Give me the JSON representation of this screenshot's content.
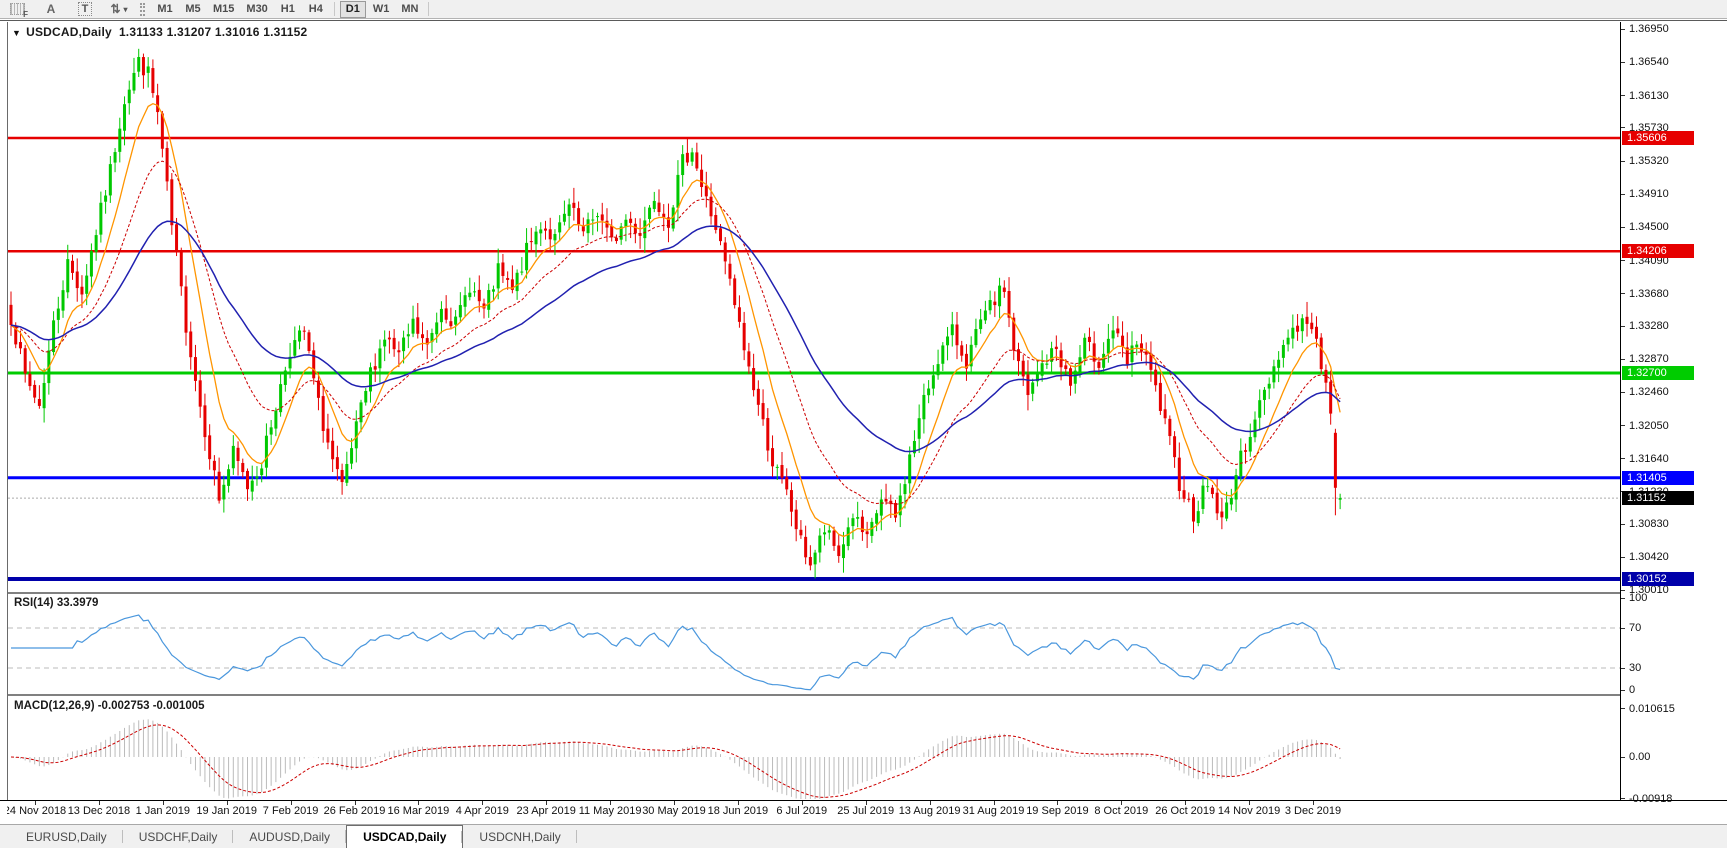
{
  "toolbar": {
    "tools": [
      {
        "name": "fibo-grid-tool",
        "glyph": "grid",
        "sub": "F"
      },
      {
        "name": "text-label-tool",
        "glyph": "A"
      },
      {
        "name": "text-tool",
        "glyph": "T",
        "boxed": true
      },
      {
        "name": "arrows-tool",
        "glyph": "⇅",
        "caret": "▾"
      }
    ],
    "timeframes": [
      "M1",
      "M5",
      "M15",
      "M30",
      "H1",
      "H4",
      "D1",
      "W1",
      "MN"
    ],
    "active_timeframe": "D1"
  },
  "chart": {
    "dropdown_glyph": "▼",
    "title": "USDCAD,Daily",
    "ohlc_text": "1.31133 1.31207 1.31016 1.31152"
  },
  "chart_data": {
    "type": "candlestick",
    "symbol": "USDCAD",
    "timeframe": "Daily",
    "current_bar": {
      "open": 1.31133,
      "high": 1.31207,
      "low": 1.31016,
      "close": 1.31152
    },
    "bars_total": 282,
    "price_axis": {
      "ticks": [
        "1.36950",
        "1.36540",
        "1.36130",
        "1.35730",
        "1.35320",
        "1.34910",
        "1.34500",
        "1.34090",
        "1.33680",
        "1.33280",
        "1.32870",
        "1.32460",
        "1.32050",
        "1.31640",
        "1.31230",
        "1.30830",
        "1.30420",
        "1.30010"
      ],
      "badges": [
        {
          "text": "1.35606",
          "bg": "#e60000"
        },
        {
          "text": "1.34206",
          "bg": "#e60000"
        },
        {
          "text": "1.32700",
          "bg": "#00cc00"
        },
        {
          "text": "1.31405",
          "bg": "#0000ff"
        },
        {
          "text": "1.30152",
          "bg": "#0000aa"
        },
        {
          "text": "1.31152",
          "bg": "#000000"
        }
      ]
    },
    "levels": [
      {
        "price": 1.35606,
        "color": "#e60000",
        "width": 2.5
      },
      {
        "price": 1.34206,
        "color": "#e60000",
        "width": 2.5
      },
      {
        "price": 1.327,
        "color": "#00cc00",
        "width": 3
      },
      {
        "price": 1.31405,
        "color": "#0000ff",
        "width": 3
      },
      {
        "price": 1.30152,
        "color": "#0000aa",
        "width": 4
      }
    ],
    "current_price_line": {
      "price": 1.31152,
      "color": "#aaaaaa"
    },
    "date_axis": [
      "24 Nov 2018",
      "13 Dec 2018",
      "1 Jan 2019",
      "19 Jan 2019",
      "7 Feb 2019",
      "26 Feb 2019",
      "16 Mar 2019",
      "4 Apr 2019",
      "23 Apr 2019",
      "11 May 2019",
      "30 May 2019",
      "18 Jun 2019",
      "6 Jul 2019",
      "25 Jul 2019",
      "13 Aug 2019",
      "31 Aug 2019",
      "19 Sep 2019",
      "8 Oct 2019",
      "26 Oct 2019",
      "14 Nov 2019",
      "3 Dec 2019"
    ],
    "close_anchors": [
      [
        0,
        1.334
      ],
      [
        3,
        1.3265
      ],
      [
        6,
        1.323
      ],
      [
        9,
        1.333
      ],
      [
        12,
        1.3405
      ],
      [
        15,
        1.337
      ],
      [
        18,
        1.3445
      ],
      [
        21,
        1.352
      ],
      [
        24,
        1.361
      ],
      [
        27,
        1.3655
      ],
      [
        29,
        1.364
      ],
      [
        31,
        1.359
      ],
      [
        34,
        1.345
      ],
      [
        37,
        1.333
      ],
      [
        40,
        1.323
      ],
      [
        44,
        1.3115
      ],
      [
        47,
        1.317
      ],
      [
        50,
        1.313
      ],
      [
        53,
        1.316
      ],
      [
        56,
        1.323
      ],
      [
        59,
        1.33
      ],
      [
        62,
        1.332
      ],
      [
        65,
        1.323
      ],
      [
        68,
        1.316
      ],
      [
        70,
        1.3125
      ],
      [
        73,
        1.32
      ],
      [
        76,
        1.327
      ],
      [
        79,
        1.3315
      ],
      [
        82,
        1.329
      ],
      [
        85,
        1.333
      ],
      [
        88,
        1.33
      ],
      [
        91,
        1.3355
      ],
      [
        94,
        1.333
      ],
      [
        97,
        1.338
      ],
      [
        100,
        1.3345
      ],
      [
        103,
        1.3395
      ],
      [
        106,
        1.337
      ],
      [
        109,
        1.342
      ],
      [
        112,
        1.3455
      ],
      [
        115,
        1.3435
      ],
      [
        118,
        1.3475
      ],
      [
        121,
        1.344
      ],
      [
        124,
        1.347
      ],
      [
        127,
        1.343
      ],
      [
        130,
        1.346
      ],
      [
        133,
        1.3445
      ],
      [
        136,
        1.349
      ],
      [
        139,
        1.346
      ],
      [
        142,
        1.353
      ],
      [
        144,
        1.355
      ],
      [
        146,
        1.35
      ],
      [
        149,
        1.345
      ],
      [
        152,
        1.338
      ],
      [
        155,
        1.33
      ],
      [
        158,
        1.323
      ],
      [
        161,
        1.316
      ],
      [
        164,
        1.312
      ],
      [
        167,
        1.306
      ],
      [
        169,
        1.3035
      ],
      [
        172,
        1.3075
      ],
      [
        175,
        1.3045
      ],
      [
        178,
        1.3095
      ],
      [
        181,
        1.306
      ],
      [
        184,
        1.3115
      ],
      [
        187,
        1.309
      ],
      [
        190,
        1.3165
      ],
      [
        193,
        1.3235
      ],
      [
        196,
        1.329
      ],
      [
        199,
        1.332
      ],
      [
        202,
        1.3285
      ],
      [
        205,
        1.333
      ],
      [
        208,
        1.336
      ],
      [
        210,
        1.3375
      ],
      [
        212,
        1.33
      ],
      [
        215,
        1.324
      ],
      [
        218,
        1.328
      ],
      [
        221,
        1.33
      ],
      [
        224,
        1.3255
      ],
      [
        227,
        1.3305
      ],
      [
        230,
        1.3285
      ],
      [
        233,
        1.3325
      ],
      [
        236,
        1.328
      ],
      [
        238,
        1.331
      ],
      [
        241,
        1.327
      ],
      [
        244,
        1.3205
      ],
      [
        247,
        1.3135
      ],
      [
        250,
        1.3095
      ],
      [
        253,
        1.3135
      ],
      [
        256,
        1.3085
      ],
      [
        259,
        1.3145
      ],
      [
        262,
        1.32
      ],
      [
        265,
        1.3245
      ],
      [
        268,
        1.3295
      ],
      [
        271,
        1.3325
      ],
      [
        274,
        1.3335
      ],
      [
        276,
        1.3305
      ],
      [
        278,
        1.3265
      ],
      [
        279,
        1.3215
      ],
      [
        280,
        1.3128
      ],
      [
        281,
        1.31152
      ]
    ],
    "forced_bars": {
      "28": {
        "h": 1.3665
      },
      "143": {
        "h": 1.35615
      },
      "170": {
        "l": 1.3016
      },
      "280": {
        "o": 1.3196,
        "h": 1.3201,
        "l": 1.3094,
        "c": 1.3128
      },
      "281": {
        "o": 1.31133,
        "h": 1.31207,
        "l": 1.31016,
        "c": 1.31152
      }
    },
    "style": {
      "bull": "#00c800",
      "bear": "#e60000"
    },
    "indicators": {
      "moving_averages": [
        {
          "period": 9,
          "color": "#ff9500",
          "width": 1.3,
          "dash": ""
        },
        {
          "period": 21,
          "color": "#cc0000",
          "width": 1,
          "dash": "3,2"
        },
        {
          "period": 45,
          "color": "#2121b0",
          "width": 1.5,
          "dash": ""
        }
      ],
      "rsi_period": 14,
      "macd_params": [
        12,
        26,
        9
      ]
    }
  },
  "rsi": {
    "label": "RSI(14) 33.3979",
    "value": 33.3979,
    "color": "#4a97dd",
    "ticks": [
      {
        "label": "100",
        "v": 100
      },
      {
        "label": "70",
        "v": 70
      },
      {
        "label": "30",
        "v": 30
      },
      {
        "label": "0",
        "v": 0
      }
    ],
    "dashed_levels": [
      70,
      30
    ]
  },
  "macd": {
    "label": "MACD(12,26,9) -0.002753 -0.001005",
    "main_value": -0.002753,
    "signal_value": -0.001005,
    "hist_color": "#bbbbbb",
    "signal_color": "#cc0000",
    "ticks": [
      {
        "label": "0.010615",
        "v": 0.010615
      },
      {
        "label": "0.00",
        "v": 0
      },
      {
        "label": "-0.00918",
        "v": -0.00918
      }
    ]
  },
  "tabs": [
    {
      "label": "EURUSD,Daily",
      "active": false
    },
    {
      "label": "USDCHF,Daily",
      "active": false
    },
    {
      "label": "AUDUSD,Daily",
      "active": false
    },
    {
      "label": "USDCAD,Daily",
      "active": true
    },
    {
      "label": "USDCNH,Daily",
      "active": false
    }
  ]
}
